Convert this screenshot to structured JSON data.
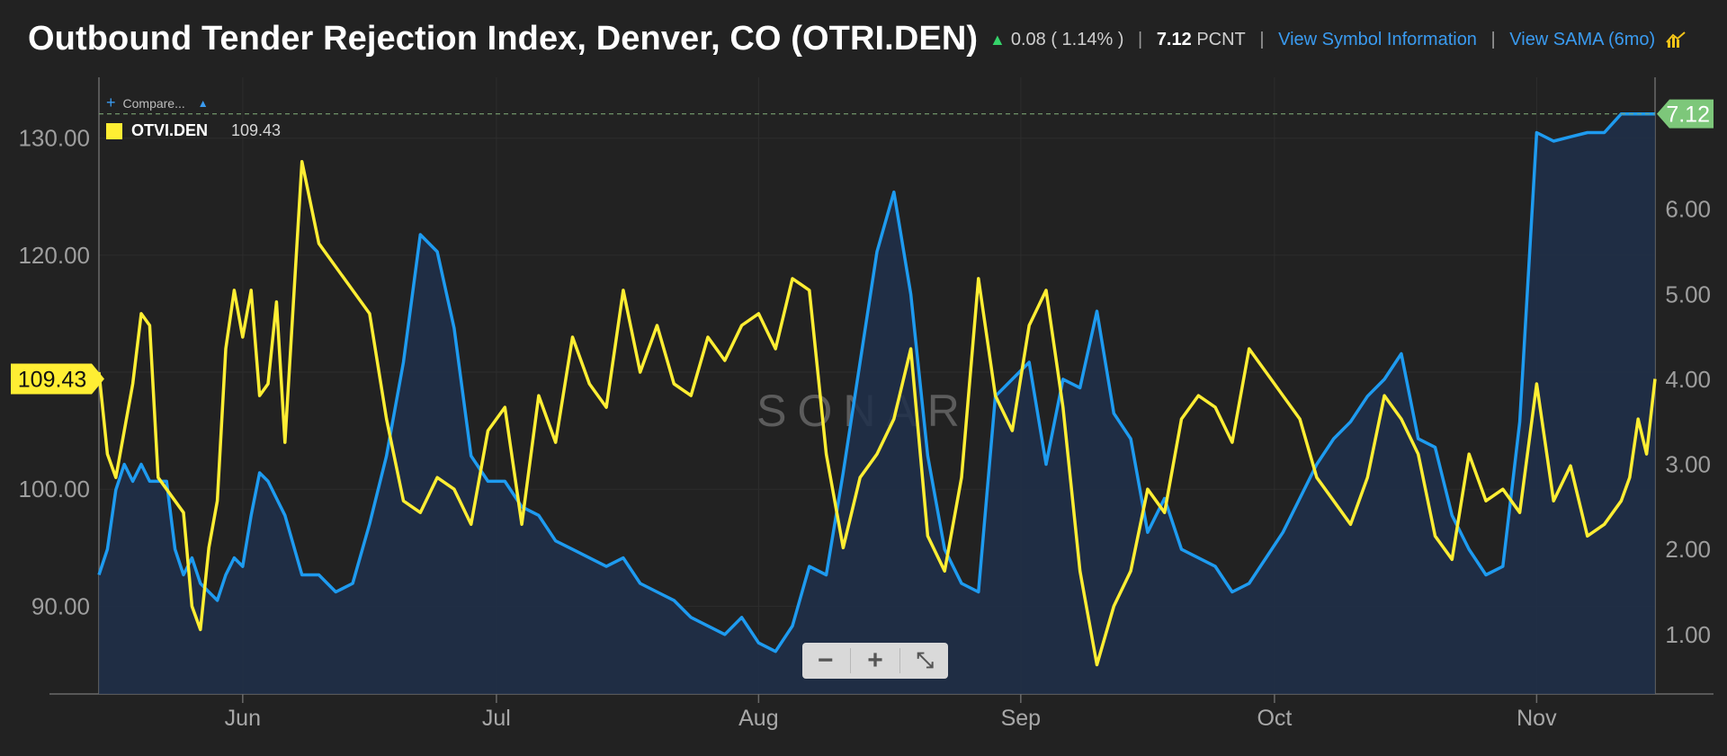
{
  "header": {
    "title": "Outbound Tender Rejection Index, Denver, CO (OTRI.DEN)",
    "change": "0.08",
    "change_pct": "( 1.14% )",
    "value": "7.12",
    "unit": "PCNT",
    "link_symbol": "View Symbol Information",
    "link_sama": "View SAMA (6mo)"
  },
  "legend": {
    "compare_label": "Compare...",
    "series_name": "OTVI.DEN",
    "series_value": "109.43"
  },
  "watermark": "SONAR",
  "zoom": {
    "minus": "−",
    "plus": "+",
    "fit": "⤡"
  },
  "colors": {
    "otri": "#1e9bf0",
    "otvi": "#ffee33",
    "area": "#1e2f4a",
    "bg": "#222222"
  },
  "chart_data": {
    "type": "line",
    "x_tick_labels": [
      "Jun",
      "Jul",
      "Aug",
      "Sep",
      "Oct",
      "Nov"
    ],
    "x_tick_days": [
      17,
      47,
      78,
      109,
      139,
      170
    ],
    "x_range_days": [
      0,
      184
    ],
    "series": [
      {
        "name": "OTRI.DEN",
        "axis": "right",
        "unit": "PCNT",
        "style": "area",
        "current_label": "7.12",
        "ylim": [
          0.3,
          7.55
        ],
        "ticks": [
          "1.00",
          "2.00",
          "3.00",
          "4.00",
          "5.00",
          "6.00"
        ],
        "x": [
          0,
          1,
          2,
          3,
          4,
          5,
          6,
          7,
          8,
          9,
          10,
          11,
          12,
          13,
          14,
          15,
          16,
          17,
          18,
          19,
          20,
          21,
          22,
          24,
          26,
          28,
          30,
          32,
          34,
          36,
          38,
          40,
          42,
          44,
          46,
          48,
          50,
          52,
          54,
          56,
          58,
          60,
          62,
          64,
          66,
          68,
          70,
          72,
          74,
          76,
          78,
          80,
          82,
          84,
          86,
          88,
          90,
          92,
          94,
          96,
          98,
          100,
          102,
          104,
          106,
          108,
          110,
          112,
          114,
          116,
          118,
          120,
          122,
          124,
          126,
          128,
          130,
          132,
          134,
          136,
          138,
          140,
          142,
          144,
          146,
          148,
          150,
          152,
          154,
          156,
          158,
          160,
          162,
          164,
          166,
          168,
          170,
          172,
          174,
          176,
          178,
          180,
          181,
          182,
          183,
          184
        ],
        "values": [
          1.7,
          2.0,
          2.7,
          3.0,
          2.8,
          3.0,
          2.8,
          2.8,
          2.8,
          2.0,
          1.7,
          1.9,
          1.6,
          1.5,
          1.4,
          1.7,
          1.9,
          1.8,
          2.4,
          2.9,
          2.8,
          2.6,
          2.4,
          1.7,
          1.7,
          1.5,
          1.6,
          2.3,
          3.1,
          4.2,
          5.7,
          5.5,
          4.6,
          3.1,
          2.8,
          2.8,
          2.5,
          2.4,
          2.1,
          2.0,
          1.9,
          1.8,
          1.9,
          1.6,
          1.5,
          1.4,
          1.2,
          1.1,
          1.0,
          1.2,
          0.9,
          0.8,
          1.1,
          1.8,
          1.7,
          2.9,
          4.2,
          5.5,
          6.2,
          5.0,
          3.1,
          2.0,
          1.6,
          1.5,
          3.8,
          4.0,
          4.2,
          3.0,
          4.0,
          3.9,
          4.8,
          3.6,
          3.3,
          2.2,
          2.6,
          2.0,
          1.9,
          1.8,
          1.5,
          1.6,
          1.9,
          2.2,
          2.6,
          3.0,
          3.3,
          3.5,
          3.8,
          4.0,
          4.3,
          3.3,
          3.2,
          2.4,
          2.0,
          1.7,
          1.8,
          3.5,
          6.9,
          6.8,
          6.85,
          6.9,
          6.9,
          7.12,
          7.12,
          7.12,
          7.12,
          7.12
        ],
        "color": "#1e9bf0"
      },
      {
        "name": "OTVI.DEN",
        "axis": "left",
        "unit": "index",
        "style": "line",
        "current_label": "109.43",
        "ylim": [
          82.5,
          135.2
        ],
        "ticks": [
          "90.00",
          "100.00",
          "110.00",
          "120.00",
          "130.00"
        ],
        "x": [
          0,
          1,
          2,
          3,
          4,
          5,
          6,
          7,
          8,
          9,
          10,
          11,
          12,
          13,
          14,
          15,
          16,
          17,
          18,
          19,
          20,
          21,
          22,
          24,
          26,
          28,
          30,
          32,
          34,
          36,
          38,
          40,
          42,
          44,
          46,
          48,
          50,
          52,
          54,
          56,
          58,
          60,
          62,
          64,
          66,
          68,
          70,
          72,
          74,
          76,
          78,
          80,
          82,
          84,
          86,
          88,
          90,
          92,
          94,
          96,
          98,
          100,
          102,
          104,
          106,
          108,
          110,
          112,
          114,
          116,
          118,
          120,
          122,
          124,
          126,
          128,
          130,
          132,
          134,
          136,
          138,
          140,
          142,
          144,
          146,
          148,
          150,
          152,
          154,
          156,
          158,
          160,
          162,
          164,
          166,
          168,
          170,
          172,
          174,
          176,
          178,
          180,
          181,
          182,
          183,
          184
        ],
        "values": [
          110,
          103,
          101,
          105,
          109,
          115,
          114,
          101,
          100,
          99,
          98,
          90,
          88,
          95,
          99,
          112,
          117,
          113,
          117,
          108,
          109,
          116,
          104,
          128,
          121,
          119,
          117,
          115,
          106,
          99,
          98,
          101,
          100,
          97,
          105,
          107,
          97,
          108,
          104,
          113,
          109,
          107,
          117,
          110,
          114,
          109,
          108,
          113,
          111,
          114,
          115,
          112,
          118,
          117,
          103,
          95,
          101,
          103,
          106,
          112,
          96,
          93,
          101,
          118,
          108,
          105,
          114,
          117,
          107,
          93,
          85,
          90,
          93,
          100,
          98,
          106,
          108,
          107,
          104,
          112,
          110,
          108,
          106,
          101,
          99,
          97,
          101,
          108,
          106,
          103,
          96,
          94,
          103,
          99,
          100,
          98,
          109,
          99,
          102,
          96,
          97,
          99,
          101,
          106,
          103,
          109.43
        ],
        "color": "#ffee33"
      }
    ]
  }
}
